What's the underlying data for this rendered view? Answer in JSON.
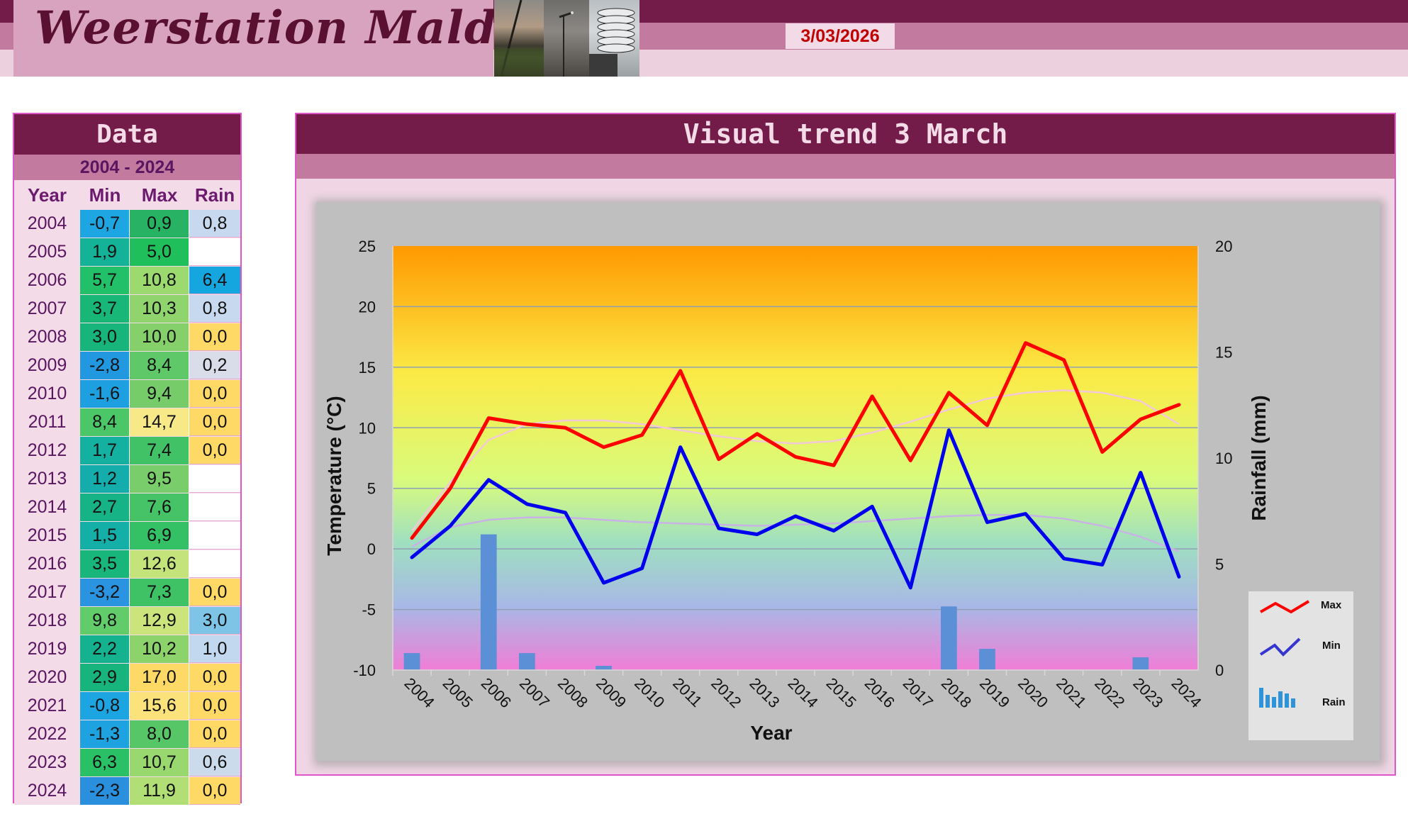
{
  "header": {
    "title": "Weerstation Malderen",
    "date": "3/03/2026"
  },
  "data_table": {
    "title": "Data",
    "period": "2004 - 2024",
    "columns": [
      "Year",
      "Min",
      "Max",
      "Rain"
    ],
    "rows": [
      {
        "year": "2004",
        "min": "-0,7",
        "max": "0,9",
        "rain": "0,8",
        "min_color": "#1da6e2",
        "max_color": "#27b363",
        "rain_color": "#c7d9ee"
      },
      {
        "year": "2005",
        "min": "1,9",
        "max": "5,0",
        "rain": "",
        "min_color": "#14b296",
        "max_color": "#1fbf5c",
        "rain_color": "#ffffff"
      },
      {
        "year": "2006",
        "min": "5,7",
        "max": "10,8",
        "rain": "6,4",
        "min_color": "#22c068",
        "max_color": "#9cd96e",
        "rain_color": "#15a6e0"
      },
      {
        "year": "2007",
        "min": "3,7",
        "max": "10,3",
        "rain": "0,8",
        "min_color": "#19b777",
        "max_color": "#8fd46c",
        "rain_color": "#c7d9ee"
      },
      {
        "year": "2008",
        "min": "3,0",
        "max": "10,0",
        "rain": "0,0",
        "min_color": "#17b47b",
        "max_color": "#86d06b",
        "rain_color": "#ffd966"
      },
      {
        "year": "2009",
        "min": "-2,8",
        "max": "8,4",
        "rain": "0,2",
        "min_color": "#2198e0",
        "max_color": "#5fc868",
        "rain_color": "#d9dde9"
      },
      {
        "year": "2010",
        "min": "-1,6",
        "max": "9,4",
        "rain": "0,0",
        "min_color": "#1e9fe0",
        "max_color": "#77cc6a",
        "rain_color": "#ffd966"
      },
      {
        "year": "2011",
        "min": "8,4",
        "max": "14,7",
        "rain": "0,0",
        "min_color": "#4cc767",
        "max_color": "#f7e987",
        "rain_color": "#ffd966"
      },
      {
        "year": "2012",
        "min": "1,7",
        "max": "7,4",
        "rain": "0,0",
        "min_color": "#14b1a0",
        "max_color": "#41c266",
        "rain_color": "#ffd966"
      },
      {
        "year": "2013",
        "min": "1,2",
        "max": "9,5",
        "rain": "",
        "min_color": "#15adac",
        "max_color": "#79cd6a",
        "rain_color": "#ffffff"
      },
      {
        "year": "2014",
        "min": "2,7",
        "max": "7,6",
        "rain": "",
        "min_color": "#16b387",
        "max_color": "#46c366",
        "rain_color": "#ffffff"
      },
      {
        "year": "2015",
        "min": "1,5",
        "max": "6,9",
        "rain": "",
        "min_color": "#14afa6",
        "max_color": "#34c064",
        "rain_color": "#ffffff"
      },
      {
        "year": "2016",
        "min": "3,5",
        "max": "12,6",
        "rain": "",
        "min_color": "#18b67b",
        "max_color": "#c4e37a",
        "rain_color": "#ffffff"
      },
      {
        "year": "2017",
        "min": "-3,2",
        "max": "7,3",
        "rain": "0,0",
        "min_color": "#2a94e0",
        "max_color": "#3fc166",
        "rain_color": "#ffd966"
      },
      {
        "year": "2018",
        "min": "9,8",
        "max": "12,9",
        "rain": "3,0",
        "min_color": "#62cc6a",
        "max_color": "#cbe47c",
        "rain_color": "#7ec4e6"
      },
      {
        "year": "2019",
        "min": "2,2",
        "max": "10,2",
        "rain": "1,0",
        "min_color": "#15b28f",
        "max_color": "#8cd36c",
        "rain_color": "#c2d8ee"
      },
      {
        "year": "2020",
        "min": "2,9",
        "max": "17,0",
        "rain": "0,0",
        "min_color": "#17b47e",
        "max_color": "#ffd966",
        "rain_color": "#ffd966"
      },
      {
        "year": "2021",
        "min": "-0,8",
        "max": "15,6",
        "rain": "0,0",
        "min_color": "#1ca5e1",
        "max_color": "#fbe27a",
        "rain_color": "#ffd966"
      },
      {
        "year": "2022",
        "min": "-1,3",
        "max": "8,0",
        "rain": "0,0",
        "min_color": "#1ea2e0",
        "max_color": "#56c667",
        "rain_color": "#ffd966"
      },
      {
        "year": "2023",
        "min": "6,3",
        "max": "10,7",
        "rain": "0,6",
        "min_color": "#2ac166",
        "max_color": "#99d86e",
        "rain_color": "#ccdbec"
      },
      {
        "year": "2024",
        "min": "-2,3",
        "max": "11,9",
        "rain": "0,0",
        "min_color": "#2a8fdc",
        "max_color": "#b2de76",
        "rain_color": "#ffd966"
      }
    ]
  },
  "chart_panel": {
    "title": "Visual  trend 3 March"
  },
  "chart_data": {
    "type": "line",
    "xlabel": "Year",
    "ylabel": "Temperature (°C)",
    "y2label": "Rainfall (mm)",
    "x": [
      "2004",
      "2005",
      "2006",
      "2007",
      "2008",
      "2009",
      "2010",
      "2011",
      "2012",
      "2013",
      "2014",
      "2015",
      "2016",
      "2017",
      "2018",
      "2019",
      "2020",
      "2021",
      "2022",
      "2023",
      "2024"
    ],
    "ylim": [
      -10,
      25
    ],
    "y2lim": [
      0,
      20
    ],
    "yticks": [
      25,
      20,
      15,
      10,
      5,
      0,
      -5,
      -10
    ],
    "y2ticks": [
      20,
      15,
      10,
      5,
      0
    ],
    "grid": true,
    "legend_position": "right",
    "series": [
      {
        "name": "Max",
        "kind": "line",
        "axis": "left",
        "color": "#ff0000",
        "values": [
          0.9,
          5.0,
          10.8,
          10.3,
          10.0,
          8.4,
          9.4,
          14.7,
          7.4,
          9.5,
          7.6,
          6.9,
          12.6,
          7.3,
          12.9,
          10.2,
          17.0,
          15.6,
          8.0,
          10.7,
          11.9
        ]
      },
      {
        "name": "Min",
        "kind": "line",
        "axis": "left",
        "color": "#0000ee",
        "values": [
          -0.7,
          1.9,
          5.7,
          3.7,
          3.0,
          -2.8,
          -1.6,
          8.4,
          1.7,
          1.2,
          2.7,
          1.5,
          3.5,
          -3.2,
          9.8,
          2.2,
          2.9,
          -0.8,
          -1.3,
          6.3,
          -2.3
        ]
      },
      {
        "name": "Rain",
        "kind": "bar",
        "axis": "right",
        "color": "#5b8fd6",
        "values": [
          0.8,
          null,
          6.4,
          0.8,
          0.0,
          0.2,
          0.0,
          0.0,
          0.0,
          null,
          null,
          null,
          null,
          0.0,
          3.0,
          1.0,
          0.0,
          0.0,
          0.0,
          0.6,
          0.0
        ]
      }
    ],
    "trend_series": [
      {
        "of": "Max",
        "color": "#f3c9d9",
        "values": [
          1.5,
          5.5,
          9.0,
          10.3,
          10.6,
          10.6,
          10.3,
          9.8,
          9.3,
          8.9,
          8.7,
          8.9,
          9.6,
          10.5,
          11.5,
          12.4,
          12.9,
          13.1,
          12.9,
          12.2,
          10.3
        ]
      },
      {
        "of": "Min",
        "color": "#c9b3e6",
        "values": [
          0.2,
          1.8,
          2.4,
          2.6,
          2.6,
          2.4,
          2.2,
          2.1,
          2.0,
          1.9,
          2.0,
          2.1,
          2.3,
          2.5,
          2.7,
          2.8,
          2.8,
          2.5,
          1.9,
          1.0,
          -0.2
        ]
      }
    ]
  }
}
